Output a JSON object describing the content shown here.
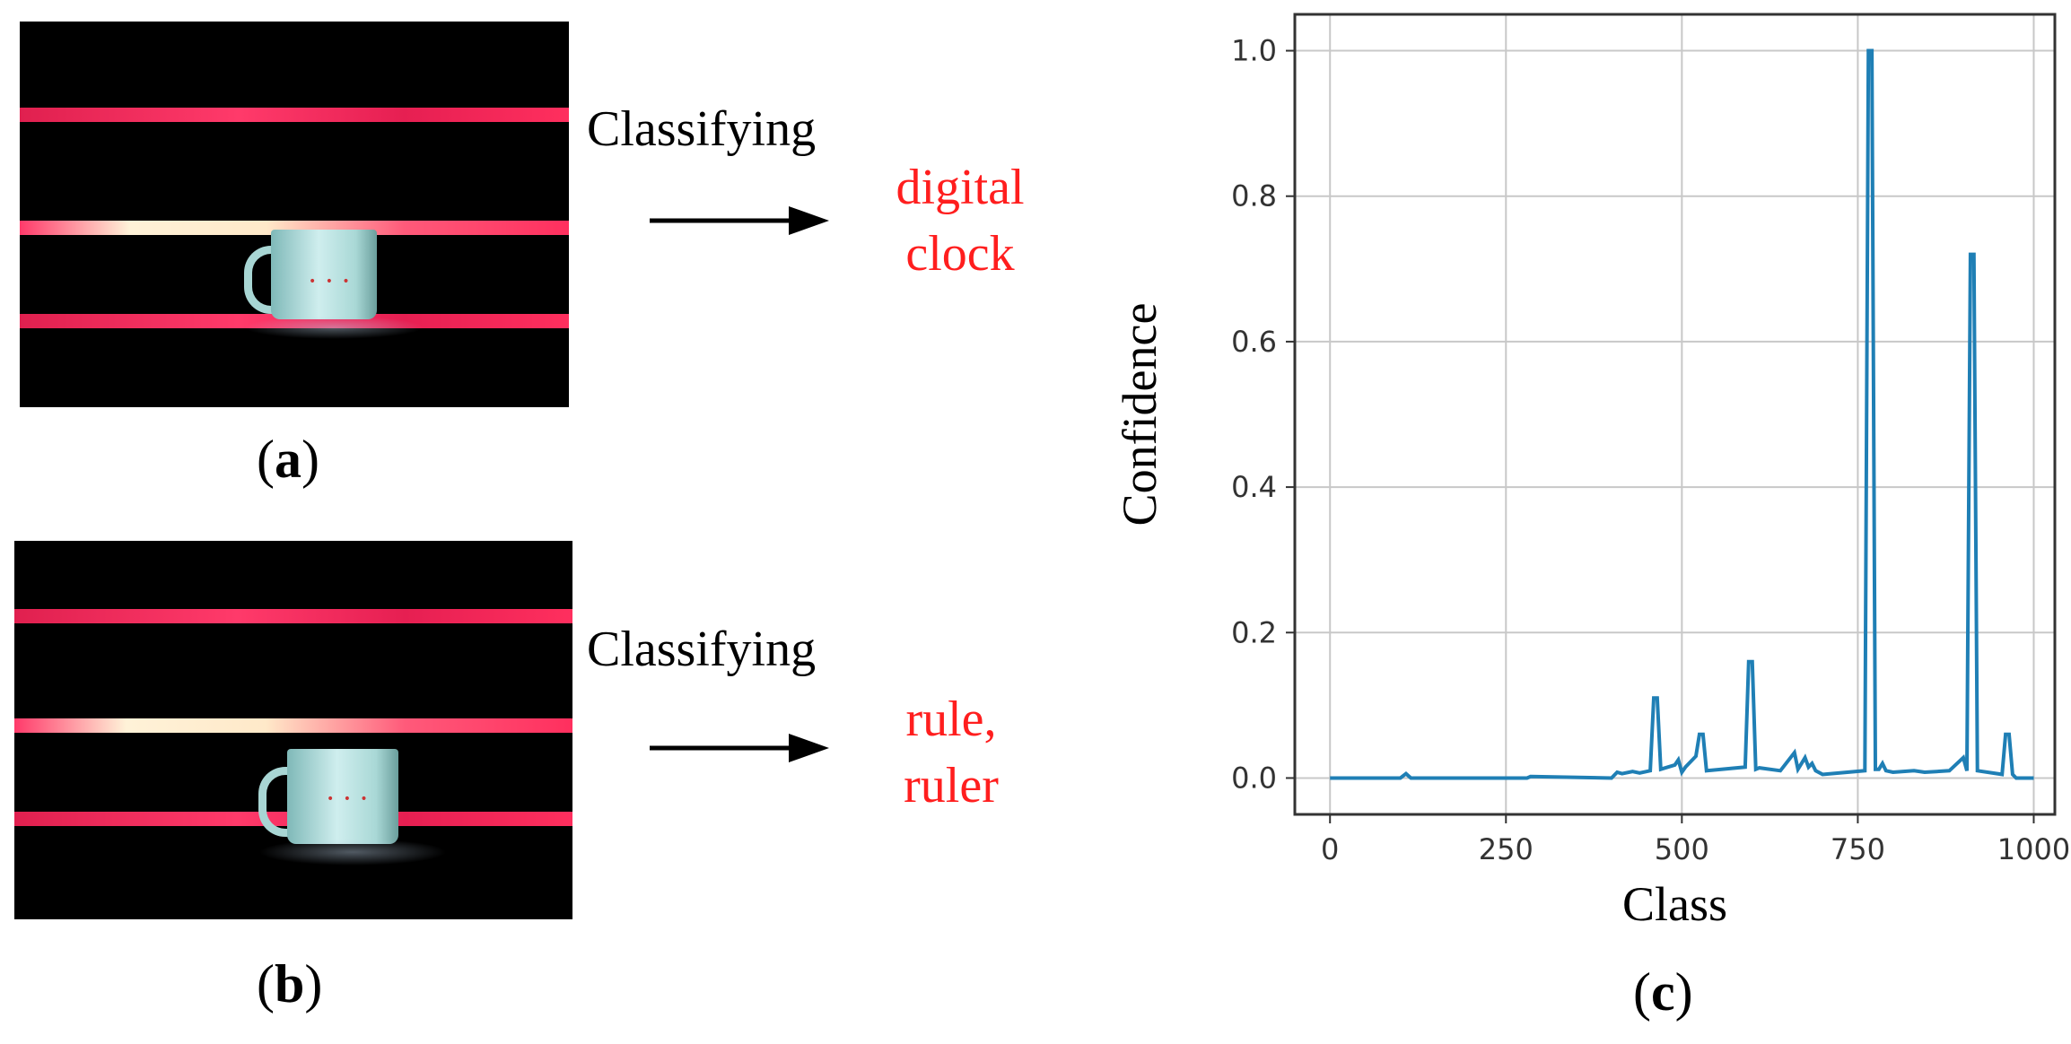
{
  "panels": {
    "a": {
      "action": "Classifying",
      "result": "digital\nclock",
      "label_open": "(",
      "label_letter": "a",
      "label_close": ")"
    },
    "b": {
      "action": "Classifying",
      "result": "rule,\nruler",
      "label_open": "(",
      "label_letter": "b",
      "label_close": ")"
    },
    "c": {
      "label_open": "(",
      "label_letter": "c",
      "label_close": ")"
    }
  },
  "colors": {
    "result_text": "#ff1e1e",
    "series_line": "#1f7fb5",
    "stripe": "#ff2f5e"
  },
  "chart_data": {
    "type": "line",
    "title": "",
    "xlabel": "Class",
    "ylabel": "Confidence",
    "xlim": [
      -50,
      1030
    ],
    "ylim": [
      -0.05,
      1.05
    ],
    "xticks": [
      0,
      250,
      500,
      750,
      1000
    ],
    "xtick_labels": [
      "0",
      "250",
      "500",
      "750",
      "1000"
    ],
    "yticks": [
      0.0,
      0.2,
      0.4,
      0.6,
      0.8,
      1.0
    ],
    "ytick_labels": [
      "0.0",
      "0.2",
      "0.4",
      "0.6",
      "0.8",
      "1.0"
    ],
    "grid": true,
    "series": [
      {
        "x": [
          0,
          100,
          108,
          115,
          280,
          285,
          400,
          408,
          415,
          430,
          440,
          455,
          460,
          465,
          470,
          490,
          495,
          500,
          505,
          520,
          525,
          530,
          535,
          590,
          595,
          600,
          605,
          610,
          640,
          660,
          665,
          670,
          675,
          680,
          685,
          690,
          700,
          760,
          765,
          770,
          775,
          780,
          785,
          790,
          800,
          830,
          845,
          880,
          900,
          905,
          910,
          915,
          920,
          955,
          960,
          965,
          970,
          975,
          1000
        ],
        "y": [
          0.0,
          0.0,
          0.006,
          0.0,
          0.0,
          0.002,
          0.0,
          0.008,
          0.006,
          0.009,
          0.007,
          0.01,
          0.11,
          0.11,
          0.012,
          0.018,
          0.025,
          0.008,
          0.015,
          0.03,
          0.06,
          0.06,
          0.01,
          0.015,
          0.16,
          0.16,
          0.012,
          0.014,
          0.01,
          0.035,
          0.012,
          0.02,
          0.028,
          0.015,
          0.02,
          0.01,
          0.005,
          0.01,
          1.0,
          1.0,
          0.012,
          0.012,
          0.02,
          0.01,
          0.008,
          0.01,
          0.008,
          0.01,
          0.028,
          0.01,
          0.72,
          0.72,
          0.01,
          0.005,
          0.06,
          0.06,
          0.005,
          0.0,
          0.0
        ]
      }
    ]
  }
}
